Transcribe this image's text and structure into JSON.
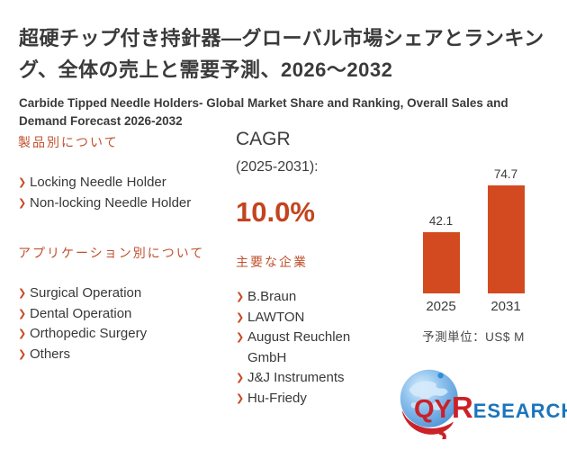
{
  "header": {
    "title_jp": "超硬チップ付き持針器—グローバル市場シェアとランキング、全体の売上と需要予測、2026～2032",
    "title_en": "Carbide Tipped Needle Holders- Global Market Share and Ranking, Overall Sales and Demand Forecast 2026-2032"
  },
  "product_section": {
    "heading": "製品別について",
    "items": [
      "Locking Needle Holder",
      "Non-locking Needle Holder"
    ]
  },
  "application_section": {
    "heading": "アプリケーション別について",
    "items": [
      "Surgical Operation",
      "Dental Operation",
      "Orthopedic Surgery",
      "Others"
    ]
  },
  "cagr": {
    "label": "CAGR",
    "period": "(2025-2031):",
    "value": "10.0%"
  },
  "companies_section": {
    "heading": "主要な企業",
    "items": [
      "B.Braun",
      "LAWTON",
      "August Reuchlen GmbH",
      "J&J Instruments",
      "Hu-Friedy"
    ]
  },
  "chart_data": {
    "type": "bar",
    "categories": [
      "2025",
      "2031"
    ],
    "values": [
      42.1,
      74.7
    ],
    "title": "",
    "xlabel": "",
    "ylabel": "",
    "ylim": [
      0,
      80
    ],
    "grid": false,
    "legend": false,
    "unit_note": "予測単位：US$ M",
    "bar_color": "#d34a20"
  },
  "logo": {
    "text_red_qy": "QY",
    "text_red_r": "R",
    "text_blue": "ESEARCH"
  },
  "bullet_icon": "❯",
  "colors": {
    "accent_heading": "#c0512e",
    "accent_value": "#c3441f",
    "bar": "#d34a20",
    "logo_red": "#cb2128",
    "logo_blue": "#1b75bc",
    "text_dark": "#3a3a3a"
  }
}
